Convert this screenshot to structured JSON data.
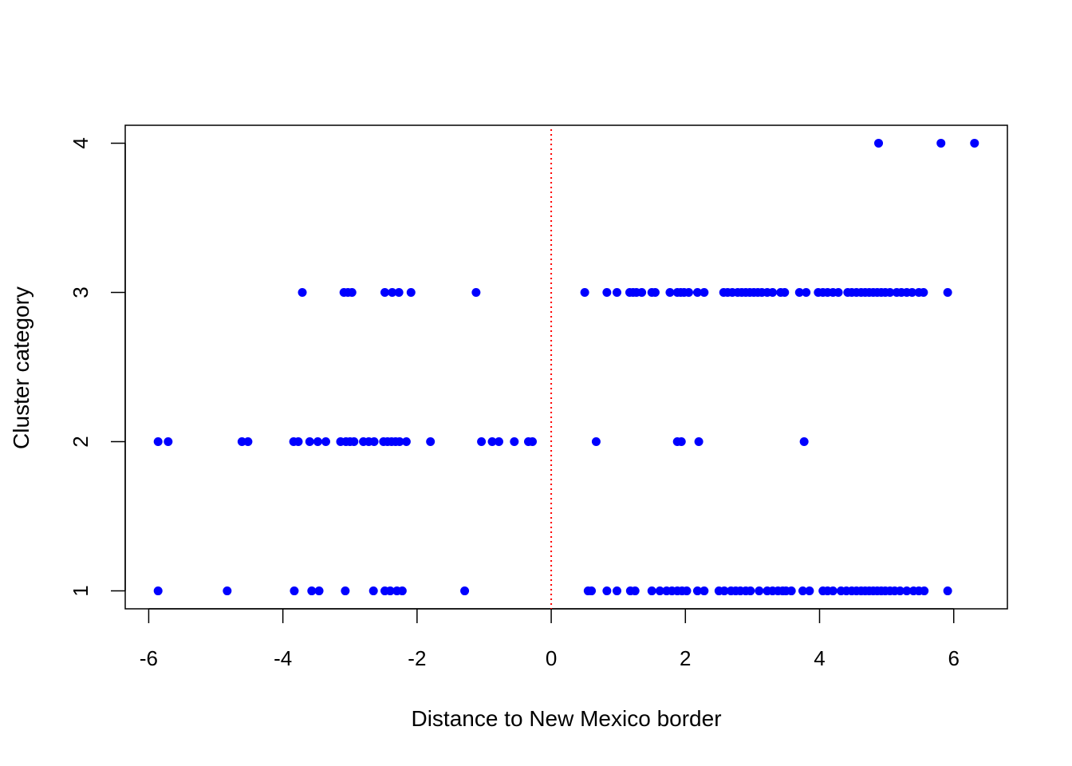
{
  "chart_data": {
    "type": "scatter",
    "title": "",
    "xlabel": "Distance to New Mexico border",
    "ylabel": "Cluster category",
    "xlim": [
      -6.35,
      6.8
    ],
    "ylim": [
      0.88,
      4.12
    ],
    "x_ticks": [
      -6,
      -4,
      -2,
      0,
      2,
      4,
      6
    ],
    "y_ticks": [
      1,
      2,
      3,
      4
    ],
    "x_tick_labels": [
      "-6",
      "-4",
      "-2",
      "0",
      "2",
      "4",
      "6"
    ],
    "y_tick_labels": [
      "1",
      "2",
      "3",
      "4"
    ],
    "grid": false,
    "legend": "none",
    "point_color": "#0000ff",
    "reference_line": {
      "x": 0,
      "color": "#ff0000",
      "style": "dotted"
    },
    "points": [
      {
        "x": 4.88,
        "y": 4
      },
      {
        "x": 5.81,
        "y": 4
      },
      {
        "x": 6.31,
        "y": 4
      },
      {
        "x": -3.71,
        "y": 3
      },
      {
        "x": -3.09,
        "y": 3
      },
      {
        "x": -3.03,
        "y": 3
      },
      {
        "x": -2.97,
        "y": 3
      },
      {
        "x": -2.48,
        "y": 3
      },
      {
        "x": -2.37,
        "y": 3
      },
      {
        "x": -2.27,
        "y": 3
      },
      {
        "x": -2.09,
        "y": 3
      },
      {
        "x": -1.12,
        "y": 3
      },
      {
        "x": 0.5,
        "y": 3
      },
      {
        "x": 0.83,
        "y": 3
      },
      {
        "x": 0.98,
        "y": 3
      },
      {
        "x": 1.17,
        "y": 3
      },
      {
        "x": 1.22,
        "y": 3
      },
      {
        "x": 1.27,
        "y": 3
      },
      {
        "x": 1.35,
        "y": 3
      },
      {
        "x": 1.5,
        "y": 3
      },
      {
        "x": 1.55,
        "y": 3
      },
      {
        "x": 1.77,
        "y": 3
      },
      {
        "x": 1.88,
        "y": 3
      },
      {
        "x": 1.93,
        "y": 3
      },
      {
        "x": 1.98,
        "y": 3
      },
      {
        "x": 2.05,
        "y": 3
      },
      {
        "x": 2.18,
        "y": 3
      },
      {
        "x": 2.28,
        "y": 3
      },
      {
        "x": 2.57,
        "y": 3
      },
      {
        "x": 2.63,
        "y": 3
      },
      {
        "x": 2.7,
        "y": 3
      },
      {
        "x": 2.78,
        "y": 3
      },
      {
        "x": 2.84,
        "y": 3
      },
      {
        "x": 2.9,
        "y": 3
      },
      {
        "x": 2.96,
        "y": 3
      },
      {
        "x": 3.02,
        "y": 3
      },
      {
        "x": 3.08,
        "y": 3
      },
      {
        "x": 3.14,
        "y": 3
      },
      {
        "x": 3.22,
        "y": 3
      },
      {
        "x": 3.3,
        "y": 3
      },
      {
        "x": 3.42,
        "y": 3
      },
      {
        "x": 3.48,
        "y": 3
      },
      {
        "x": 3.7,
        "y": 3
      },
      {
        "x": 3.8,
        "y": 3
      },
      {
        "x": 3.98,
        "y": 3
      },
      {
        "x": 4.05,
        "y": 3
      },
      {
        "x": 4.12,
        "y": 3
      },
      {
        "x": 4.2,
        "y": 3
      },
      {
        "x": 4.28,
        "y": 3
      },
      {
        "x": 4.42,
        "y": 3
      },
      {
        "x": 4.48,
        "y": 3
      },
      {
        "x": 4.55,
        "y": 3
      },
      {
        "x": 4.62,
        "y": 3
      },
      {
        "x": 4.68,
        "y": 3
      },
      {
        "x": 4.74,
        "y": 3
      },
      {
        "x": 4.8,
        "y": 3
      },
      {
        "x": 4.86,
        "y": 3
      },
      {
        "x": 4.92,
        "y": 3
      },
      {
        "x": 4.98,
        "y": 3
      },
      {
        "x": 5.05,
        "y": 3
      },
      {
        "x": 5.15,
        "y": 3
      },
      {
        "x": 5.22,
        "y": 3
      },
      {
        "x": 5.3,
        "y": 3
      },
      {
        "x": 5.38,
        "y": 3
      },
      {
        "x": 5.48,
        "y": 3
      },
      {
        "x": 5.55,
        "y": 3
      },
      {
        "x": 5.91,
        "y": 3
      },
      {
        "x": -5.86,
        "y": 2
      },
      {
        "x": -5.71,
        "y": 2
      },
      {
        "x": -4.61,
        "y": 2
      },
      {
        "x": -4.52,
        "y": 2
      },
      {
        "x": -3.84,
        "y": 2
      },
      {
        "x": -3.77,
        "y": 2
      },
      {
        "x": -3.6,
        "y": 2
      },
      {
        "x": -3.48,
        "y": 2
      },
      {
        "x": -3.36,
        "y": 2
      },
      {
        "x": -3.14,
        "y": 2
      },
      {
        "x": -3.06,
        "y": 2
      },
      {
        "x": -3.0,
        "y": 2
      },
      {
        "x": -2.94,
        "y": 2
      },
      {
        "x": -2.8,
        "y": 2
      },
      {
        "x": -2.72,
        "y": 2
      },
      {
        "x": -2.64,
        "y": 2
      },
      {
        "x": -2.5,
        "y": 2
      },
      {
        "x": -2.44,
        "y": 2
      },
      {
        "x": -2.38,
        "y": 2
      },
      {
        "x": -2.32,
        "y": 2
      },
      {
        "x": -2.26,
        "y": 2
      },
      {
        "x": -2.16,
        "y": 2
      },
      {
        "x": -1.8,
        "y": 2
      },
      {
        "x": -1.04,
        "y": 2
      },
      {
        "x": -0.88,
        "y": 2
      },
      {
        "x": -0.78,
        "y": 2
      },
      {
        "x": -0.55,
        "y": 2
      },
      {
        "x": -0.34,
        "y": 2
      },
      {
        "x": -0.28,
        "y": 2
      },
      {
        "x": 0.67,
        "y": 2
      },
      {
        "x": 1.88,
        "y": 2
      },
      {
        "x": 1.94,
        "y": 2
      },
      {
        "x": 2.2,
        "y": 2
      },
      {
        "x": 3.77,
        "y": 2
      },
      {
        "x": -5.86,
        "y": 1
      },
      {
        "x": -4.83,
        "y": 1
      },
      {
        "x": -3.83,
        "y": 1
      },
      {
        "x": -3.57,
        "y": 1
      },
      {
        "x": -3.46,
        "y": 1
      },
      {
        "x": -3.07,
        "y": 1
      },
      {
        "x": -2.65,
        "y": 1
      },
      {
        "x": -2.48,
        "y": 1
      },
      {
        "x": -2.4,
        "y": 1
      },
      {
        "x": -2.3,
        "y": 1
      },
      {
        "x": -2.22,
        "y": 1
      },
      {
        "x": -1.29,
        "y": 1
      },
      {
        "x": 0.55,
        "y": 1
      },
      {
        "x": 0.6,
        "y": 1
      },
      {
        "x": 0.83,
        "y": 1
      },
      {
        "x": 0.98,
        "y": 1
      },
      {
        "x": 1.18,
        "y": 1
      },
      {
        "x": 1.25,
        "y": 1
      },
      {
        "x": 1.5,
        "y": 1
      },
      {
        "x": 1.62,
        "y": 1
      },
      {
        "x": 1.72,
        "y": 1
      },
      {
        "x": 1.8,
        "y": 1
      },
      {
        "x": 1.88,
        "y": 1
      },
      {
        "x": 1.95,
        "y": 1
      },
      {
        "x": 2.02,
        "y": 1
      },
      {
        "x": 2.18,
        "y": 1
      },
      {
        "x": 2.28,
        "y": 1
      },
      {
        "x": 2.5,
        "y": 1
      },
      {
        "x": 2.58,
        "y": 1
      },
      {
        "x": 2.68,
        "y": 1
      },
      {
        "x": 2.75,
        "y": 1
      },
      {
        "x": 2.82,
        "y": 1
      },
      {
        "x": 2.9,
        "y": 1
      },
      {
        "x": 2.97,
        "y": 1
      },
      {
        "x": 3.1,
        "y": 1
      },
      {
        "x": 3.22,
        "y": 1
      },
      {
        "x": 3.3,
        "y": 1
      },
      {
        "x": 3.38,
        "y": 1
      },
      {
        "x": 3.45,
        "y": 1
      },
      {
        "x": 3.5,
        "y": 1
      },
      {
        "x": 3.58,
        "y": 1
      },
      {
        "x": 3.75,
        "y": 1
      },
      {
        "x": 3.85,
        "y": 1
      },
      {
        "x": 4.05,
        "y": 1
      },
      {
        "x": 4.12,
        "y": 1
      },
      {
        "x": 4.2,
        "y": 1
      },
      {
        "x": 4.32,
        "y": 1
      },
      {
        "x": 4.4,
        "y": 1
      },
      {
        "x": 4.48,
        "y": 1
      },
      {
        "x": 4.55,
        "y": 1
      },
      {
        "x": 4.62,
        "y": 1
      },
      {
        "x": 4.68,
        "y": 1
      },
      {
        "x": 4.74,
        "y": 1
      },
      {
        "x": 4.8,
        "y": 1
      },
      {
        "x": 4.86,
        "y": 1
      },
      {
        "x": 4.92,
        "y": 1
      },
      {
        "x": 4.98,
        "y": 1
      },
      {
        "x": 5.05,
        "y": 1
      },
      {
        "x": 5.12,
        "y": 1
      },
      {
        "x": 5.2,
        "y": 1
      },
      {
        "x": 5.3,
        "y": 1
      },
      {
        "x": 5.4,
        "y": 1
      },
      {
        "x": 5.48,
        "y": 1
      },
      {
        "x": 5.56,
        "y": 1
      },
      {
        "x": 5.91,
        "y": 1
      }
    ]
  }
}
